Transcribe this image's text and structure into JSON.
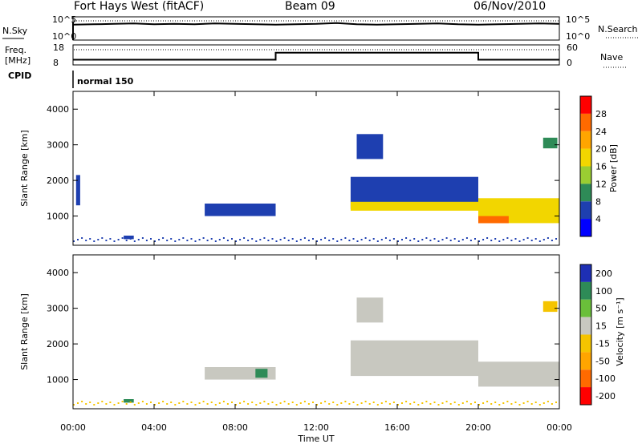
{
  "header": {
    "station": "Fort Hays West (fitACF)",
    "beam": "Beam 09",
    "date": "06/Nov/2010"
  },
  "noise_panel": {
    "left_label": "N.Sky",
    "right_label": "N.Search",
    "left_ticks": [
      "10^5",
      "10^0"
    ],
    "right_ticks": [
      "10^5",
      "10^0"
    ]
  },
  "freq_panel": {
    "left_label_line1": "Freq.",
    "left_label_line2": "[MHz]",
    "right_label": "Nave",
    "left_ticks": [
      "18",
      "8"
    ],
    "right_ticks": [
      "60",
      "0"
    ]
  },
  "cpid": {
    "label": "CPID",
    "mode": "normal 150"
  },
  "power_panel": {
    "ylabel": "Slant Range [km]",
    "colorbar_label": "Power [dB]",
    "colorbar_ticks": [
      "28",
      "24",
      "20",
      "16",
      "12",
      "8",
      "4"
    ],
    "colorbar_colors": [
      "#ff0000",
      "#ff6a00",
      "#ffa500",
      "#f2d600",
      "#9acd32",
      "#2e8b57",
      "#1e3fb0",
      "#0000ff"
    ]
  },
  "velocity_panel": {
    "ylabel": "Slant Range [km]",
    "colorbar_label": "Velocity [m s⁻¹]",
    "colorbar_ticks": [
      "200",
      "100",
      "50",
      "15",
      "-15",
      "-50",
      "-100",
      "-200"
    ],
    "colorbar_colors": [
      "#1e2fb4",
      "#2e8b57",
      "#6abf3a",
      "#c8c8c0",
      "#f5c400",
      "#ffa500",
      "#ff6a00",
      "#ff0000"
    ]
  },
  "x_axis": {
    "label": "Time UT",
    "ticks": [
      "00:00",
      "04:00",
      "08:00",
      "12:00",
      "16:00",
      "20:00",
      "00:00"
    ]
  },
  "chart_data": [
    {
      "type": "line",
      "name": "noise",
      "xlim": [
        0,
        24
      ],
      "series": [
        {
          "values_x": [
            0,
            1,
            2,
            3,
            4,
            5,
            6,
            7,
            8,
            9,
            10,
            11,
            12,
            13,
            14,
            15,
            16,
            17,
            18,
            19,
            20,
            21,
            22,
            23,
            24
          ],
          "values": [
            3.5,
            3.6,
            3.7,
            3.8,
            3.6,
            3.7,
            3.6,
            3.8,
            3.7,
            3.6,
            3.5,
            3.6,
            3.7,
            3.9,
            3.6,
            3.5,
            3.6,
            3.7,
            3.8,
            3.6,
            3.5,
            3.6,
            3.7,
            3.8,
            3.7
          ]
        }
      ],
      "ylim": [
        0,
        5
      ]
    },
    {
      "type": "line",
      "name": "frequency",
      "xlim": [
        0,
        24
      ],
      "ylim": [
        8,
        18
      ],
      "series": [
        {
          "values_x": [
            0,
            10,
            10,
            20,
            20,
            24
          ],
          "values": [
            10.5,
            10.5,
            14.5,
            14.5,
            10.5,
            10.5
          ]
        }
      ]
    },
    {
      "type": "heatmap",
      "name": "power",
      "xlim": [
        0,
        24
      ],
      "ylim": [
        180,
        4500
      ],
      "yticks": [
        1000,
        2000,
        3000,
        4000
      ],
      "xticks": [
        0,
        4,
        8,
        12,
        16,
        20,
        24
      ],
      "value_range": [
        0,
        30
      ],
      "regions": [
        {
          "t0": 0.15,
          "t1": 0.35,
          "r0": 1300,
          "r1": 2150,
          "value": 4
        },
        {
          "t0": 2.5,
          "t1": 3.0,
          "r0": 350,
          "r1": 450,
          "value": 4
        },
        {
          "t0": 6.5,
          "t1": 10.0,
          "r0": 1000,
          "r1": 1350,
          "value": 4
        },
        {
          "t0": 13.7,
          "t1": 20.0,
          "r0": 1200,
          "r1": 2100,
          "value": 6
        },
        {
          "t0": 13.7,
          "t1": 20.0,
          "r0": 1150,
          "r1": 1400,
          "value": 18
        },
        {
          "t0": 14.0,
          "t1": 15.3,
          "r0": 2600,
          "r1": 3300,
          "value": 4
        },
        {
          "t0": 20.0,
          "t1": 24.0,
          "r0": 800,
          "r1": 1500,
          "value": 16
        },
        {
          "t0": 20.0,
          "t1": 21.5,
          "r0": 800,
          "r1": 1000,
          "value": 24
        },
        {
          "t0": 23.2,
          "t1": 23.9,
          "r0": 2900,
          "r1": 3200,
          "value": 8
        }
      ]
    },
    {
      "type": "heatmap",
      "name": "velocity",
      "xlim": [
        0,
        24
      ],
      "ylim": [
        180,
        4500
      ],
      "yticks": [
        1000,
        2000,
        3000,
        4000
      ],
      "xticks": [
        0,
        4,
        8,
        12,
        16,
        20,
        24
      ],
      "value_range": [
        -200,
        200
      ],
      "regions": [
        {
          "t0": 6.5,
          "t1": 10.0,
          "r0": 1000,
          "r1": 1350,
          "value": 0
        },
        {
          "t0": 9.0,
          "t1": 9.6,
          "r0": 1050,
          "r1": 1300,
          "value": 60
        },
        {
          "t0": 13.7,
          "t1": 20.0,
          "r0": 1100,
          "r1": 2100,
          "value": 0
        },
        {
          "t0": 14.0,
          "t1": 15.3,
          "r0": 2600,
          "r1": 3300,
          "value": 0
        },
        {
          "t0": 20.0,
          "t1": 24.0,
          "r0": 800,
          "r1": 1500,
          "value": 0
        },
        {
          "t0": 23.2,
          "t1": 23.9,
          "r0": 2900,
          "r1": 3200,
          "value": -50
        },
        {
          "t0": 2.5,
          "t1": 3.0,
          "r0": 350,
          "r1": 450,
          "value": 60
        }
      ]
    }
  ]
}
